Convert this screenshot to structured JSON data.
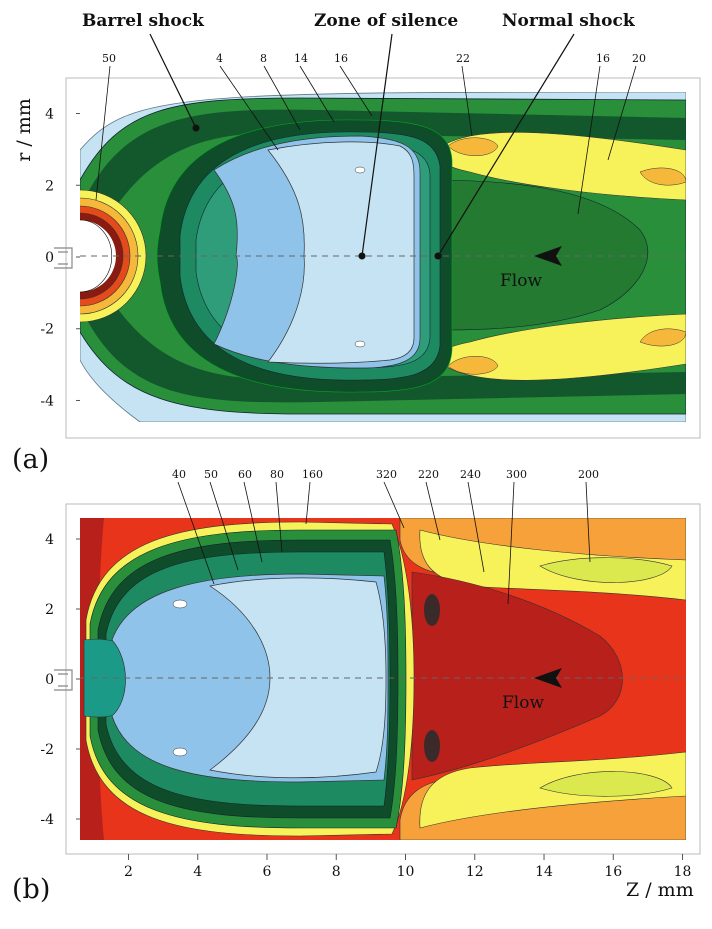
{
  "chart_data": [
    {
      "type": "heatmap",
      "panel": "(a)",
      "ylabel": "r / mm",
      "xlim": [
        0.6,
        18.1
      ],
      "ylim": [
        -4.6,
        4.6
      ],
      "y_ticks": [
        4,
        2,
        0,
        -2,
        -4
      ],
      "annotations": [
        {
          "text": "Barrel shock",
          "x": 4.0,
          "y": 4.0
        },
        {
          "text": "Zone of silence",
          "x": 8.6,
          "y": 0
        },
        {
          "text": "Normal shock",
          "x": 10.6,
          "y": 0
        }
      ],
      "flow_label": "Flow",
      "contour_level_labels": [
        "50",
        "4",
        "8",
        "14",
        "16",
        "22",
        "16",
        "20"
      ],
      "colors": {
        "very_low": "#c6e3f4",
        "low": "#8fc3ea",
        "mid_low": "#1e8a61",
        "mid": "#2a8f3a",
        "dark": "#0f4d2a",
        "high_low": "#f7f25a",
        "high": "#f6b83a",
        "very_high": "#e44a1a",
        "core": "#111111"
      }
    },
    {
      "type": "heatmap",
      "panel": "(b)",
      "xlabel": "Z / mm",
      "xlim": [
        0.6,
        18.1
      ],
      "ylim": [
        -4.6,
        4.6
      ],
      "x_ticks": [
        2,
        4,
        6,
        8,
        10,
        12,
        14,
        16,
        18
      ],
      "y_ticks": [
        4,
        2,
        0,
        -2,
        -4
      ],
      "flow_label": "Flow",
      "contour_level_labels": [
        "40",
        "50",
        "60",
        "80",
        "160",
        "320",
        "220",
        "240",
        "300",
        "200"
      ],
      "colors": {
        "cold": "#c6e3f4",
        "cool": "#8fc3ea",
        "teal": "#1b9a88",
        "green": "#2a8f3a",
        "dark_green": "#0f4d2a",
        "yellow": "#f7f25a",
        "lime": "#dbe84e",
        "orange": "#f6a13a",
        "red": "#e8341a",
        "dark_red": "#b8201c"
      }
    }
  ]
}
